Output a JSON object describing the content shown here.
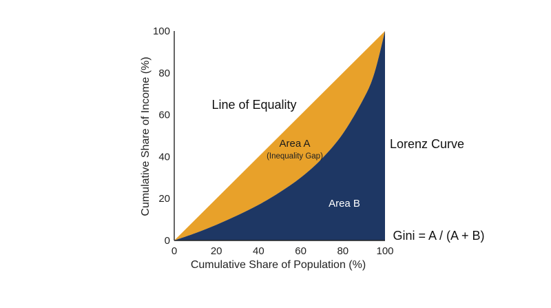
{
  "chart_data": {
    "type": "area",
    "x": [
      0,
      10,
      20,
      30,
      40,
      50,
      60,
      70,
      80,
      90,
      95,
      100
    ],
    "series": [
      {
        "values": [
          0,
          10,
          20,
          30,
          40,
          50,
          60,
          70,
          80,
          90,
          95,
          100
        ]
      },
      {
        "values": [
          0,
          3.5,
          7.5,
          12,
          17,
          23,
          30,
          39,
          51,
          68,
          80,
          100
        ]
      }
    ],
    "xlabel": "Cumulative Share of Population (%)",
    "ylabel": "Cumulative Share of Income (%)",
    "xlim": [
      0,
      100
    ],
    "ylim": [
      0,
      100
    ],
    "xticks": [
      "0",
      "20",
      "40",
      "60",
      "80",
      "100"
    ],
    "yticks": [
      "0",
      "20",
      "40",
      "60",
      "80",
      "100"
    ],
    "grid": false,
    "annotations": {
      "line_of_equality": "Line of Equality",
      "area_a": "Area A",
      "area_a_sub": "(Inequality Gap)",
      "lorenz_curve": "Lorenz Curve",
      "area_b": "Area B",
      "gini": "Gini = A / (A + B)"
    },
    "colors": {
      "area_a": "#E8A12A",
      "area_b": "#1E3764",
      "area_b_text": "#ffffff",
      "area_a_text": "#1a1a1a",
      "axis": "#222222"
    }
  }
}
